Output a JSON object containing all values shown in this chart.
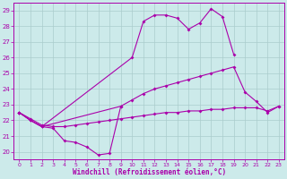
{
  "background_color": "#cceaea",
  "grid_color": "#aacccc",
  "line_color": "#aa00aa",
  "xlabel": "Windchill (Refroidissement éolien,°C)",
  "xlim": [
    -0.5,
    23.5
  ],
  "ylim": [
    19.5,
    29.5
  ],
  "yticks": [
    20,
    21,
    22,
    23,
    24,
    25,
    26,
    27,
    28,
    29
  ],
  "xticks": [
    0,
    1,
    2,
    3,
    4,
    5,
    6,
    7,
    8,
    9,
    10,
    11,
    12,
    13,
    14,
    15,
    16,
    17,
    18,
    19,
    20,
    21,
    22,
    23
  ],
  "sa_x": [
    0,
    1,
    2,
    3,
    4,
    5,
    6,
    7,
    8,
    9
  ],
  "sa_y": [
    22.5,
    22.0,
    21.6,
    21.5,
    20.7,
    20.6,
    20.3,
    19.8,
    19.9,
    22.9
  ],
  "sb_x": [
    0,
    1,
    2,
    10,
    11,
    12,
    13,
    14,
    15,
    16,
    17,
    18,
    19
  ],
  "sb_y": [
    22.5,
    22.0,
    21.6,
    26.0,
    28.3,
    28.7,
    28.7,
    28.5,
    27.8,
    28.2,
    29.1,
    28.6,
    26.2
  ],
  "sc_x": [
    0,
    1,
    2,
    9,
    10,
    11,
    12,
    13,
    14,
    15,
    16,
    17,
    18,
    19,
    20,
    21,
    22,
    23
  ],
  "sc_y": [
    22.5,
    22.0,
    21.6,
    22.9,
    23.3,
    23.7,
    24.0,
    24.2,
    24.4,
    24.6,
    24.8,
    25.0,
    25.2,
    25.4,
    23.8,
    23.2,
    22.5,
    22.9
  ],
  "sd_x": [
    0,
    1,
    2,
    3,
    4,
    5,
    6,
    7,
    8,
    9,
    10,
    11,
    12,
    13,
    14,
    15,
    16,
    17,
    18,
    19,
    20,
    21,
    22,
    23
  ],
  "sd_y": [
    22.5,
    22.1,
    21.7,
    21.6,
    21.6,
    21.7,
    21.8,
    21.9,
    22.0,
    22.1,
    22.2,
    22.3,
    22.4,
    22.5,
    22.5,
    22.6,
    22.6,
    22.7,
    22.7,
    22.8,
    22.8,
    22.8,
    22.6,
    22.9
  ]
}
